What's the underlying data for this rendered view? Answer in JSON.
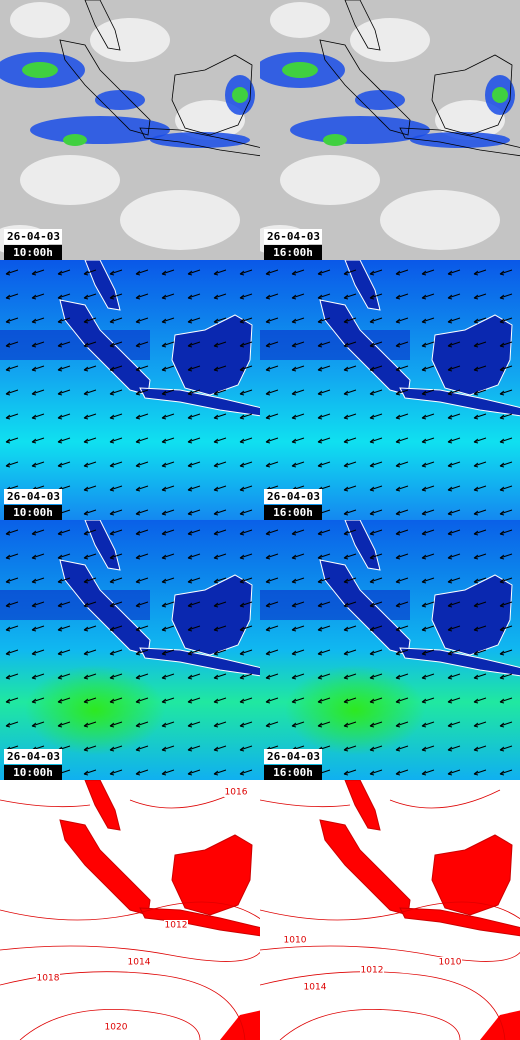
{
  "panels": [
    {
      "date": "26-04-03",
      "time": "10:00h"
    },
    {
      "date": "26-04-03",
      "time": "16:00h"
    },
    {
      "date": "26-04-03",
      "time": "10:00h"
    },
    {
      "date": "26-04-03",
      "time": "16:00h"
    },
    {
      "date": "26-04-03",
      "time": "10:00h"
    },
    {
      "date": "26-04-03",
      "time": "16:00h"
    },
    {
      "contour_labels": [
        "1016",
        "1012",
        "1014",
        "1018",
        "1020"
      ]
    },
    {
      "contour_labels": [
        "1010",
        "1012",
        "1014",
        "1010"
      ]
    }
  ]
}
